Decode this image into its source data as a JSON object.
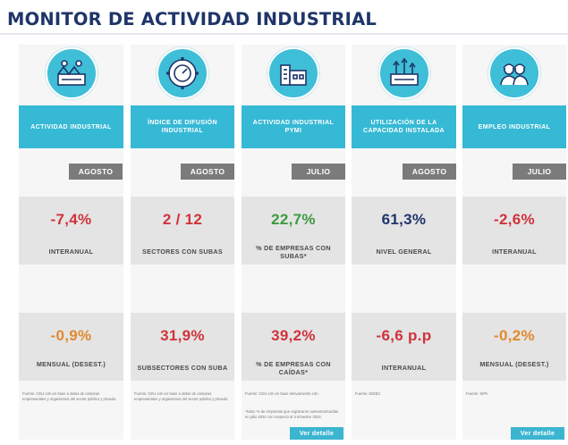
{
  "title": "MONITOR DE ACTIVIDAD INDUSTRIAL",
  "colors": {
    "accent": "#36b9d5",
    "brand": "#1f3569",
    "negative": "#d0333b",
    "positive": "#3d9a3f",
    "neutral_orange": "#e08a2f"
  },
  "columns": [
    {
      "icon": "factory-workers-icon",
      "header": "ACTIVIDAD INDUSTRIAL",
      "month": "AGOSTO",
      "value1": "-7,4%",
      "label1": "INTERANUAL",
      "value2": "-0,9%",
      "label2": "MENSUAL (DESEST.)",
      "source": "Fuente: CEU-UIA en base a datos de cámaras empresariales y organismos del sector público y privado."
    },
    {
      "icon": "gear-gauge-icon",
      "header": "ÍNDICE DE DIFUSIÓN INDUSTRIAL",
      "month": "AGOSTO",
      "value1": "2 / 12",
      "label1": "SECTORES CON SUBAS",
      "value2": "31,9%",
      "label2": "SUBSECTORES CON SUBA",
      "source": "Fuente: CEU-UIA en base a datos de cámaras empresariales y organismos del sector público y privado."
    },
    {
      "icon": "pyme-buildings-icon",
      "header": "ACTIVIDAD INDUSTRIAL PYMI",
      "month": "JULIO",
      "value1": "22,7%",
      "label1": "% DE EMPRESAS CON SUBAS*",
      "value2": "39,2%",
      "label2": "% DE EMPRESAS CON CAÍDAS*",
      "source": "Fuente: CEU-UIA en base relevamiento UIA.",
      "note": "*Nota: % de empresas que registraron aumentos/caídas en julio 2024 con respecto al II trimestre 2024.",
      "button": "Ver detalle"
    },
    {
      "icon": "factory-capacity-icon",
      "header": "UTILIZACIÓN DE LA CAPACIDAD INSTALADA",
      "month": "AGOSTO",
      "value1": "61,3%",
      "label1": "NIVEL GENERAL",
      "value2": "-6,6 p.p",
      "label2": "INTERANUAL",
      "source": "Fuente: INDEC"
    },
    {
      "icon": "hardhat-workers-icon",
      "header": "EMPLEO INDUSTRIAL",
      "month": "JULIO",
      "value1": "-2,6%",
      "label1": "INTERANUAL",
      "value2": "-0,2%",
      "label2": "MENSUAL (DESEST.)",
      "source": "Fuente: SIPA",
      "button": "Ver detalle"
    }
  ]
}
